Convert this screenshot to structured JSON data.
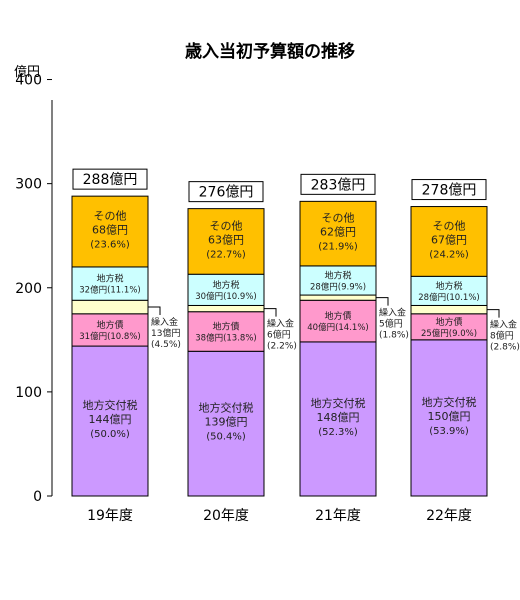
{
  "chart_data": {
    "type": "bar",
    "stacked": true,
    "title": "歳入当初予算額の推移",
    "ylabel": "億円",
    "ylim": [
      0,
      400
    ],
    "yticks": [
      "0",
      "100",
      "200",
      "300",
      "400"
    ],
    "grid": false,
    "categories": [
      "19年度",
      "20年度",
      "21年度",
      "22年度"
    ],
    "totals": [
      288,
      276,
      283,
      278
    ],
    "total_labels": [
      "288億円",
      "276億円",
      "283億円",
      "278億円"
    ],
    "series": [
      {
        "name": "地方交付税",
        "values": [
          144,
          139,
          148,
          150
        ],
        "color": "#cc99ff",
        "amount_labels": [
          "144億円",
          "139億円",
          "148億円",
          "150億円"
        ],
        "pct_labels": [
          "(50.0%)",
          "(50.4%)",
          "(52.3%)",
          "(53.9%)"
        ]
      },
      {
        "name": "地方債",
        "values": [
          31,
          38,
          40,
          25
        ],
        "color": "#ff99cc",
        "amount_labels": [
          "31億円",
          "38億円",
          "40億円",
          "25億円"
        ],
        "pct_labels": [
          "(10.8%)",
          "(13.8%)",
          "(14.1%)",
          "(9.0%)"
        ]
      },
      {
        "name": "繰入金",
        "values": [
          13,
          6,
          5,
          8
        ],
        "color": "#ffffcc",
        "amount_labels": [
          "13億円",
          "6億円",
          "5億円",
          "8億円"
        ],
        "pct_labels": [
          "(4.5%)",
          "(2.2%)",
          "(1.8%)",
          "(2.8%)"
        ]
      },
      {
        "name": "地方税",
        "values": [
          32,
          30,
          28,
          28
        ],
        "color": "#ccffff",
        "amount_labels": [
          "32億円",
          "30億円",
          "28億円",
          "28億円"
        ],
        "pct_labels": [
          "(11.1%)",
          "(10.9%)",
          "(9.9%)",
          "(10.1%)"
        ]
      },
      {
        "name": "その他",
        "values": [
          68,
          63,
          62,
          67
        ],
        "color": "#ffc000",
        "amount_labels": [
          "68億円",
          "63億円",
          "62億円",
          "67億円"
        ],
        "pct_labels": [
          "(23.6%)",
          "(22.7%)",
          "(21.9%)",
          "(24.2%)"
        ]
      }
    ]
  }
}
